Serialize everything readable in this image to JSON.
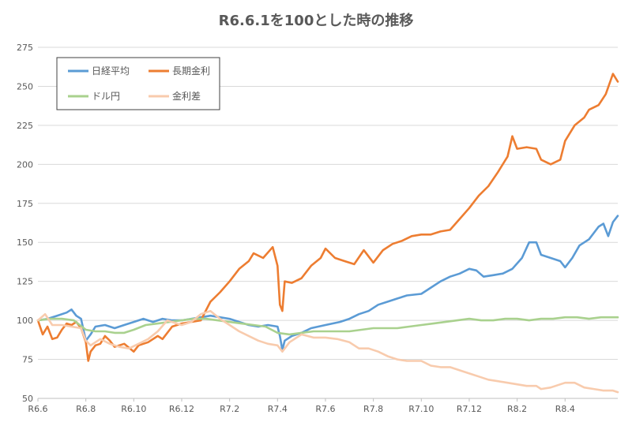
{
  "chart_data": {
    "type": "line",
    "title": "R6.6.1を100とした時の推移",
    "xlabel": "",
    "ylabel": "",
    "ylim": [
      50,
      275
    ],
    "yticks": [
      50,
      75,
      100,
      125,
      150,
      175,
      200,
      225,
      250,
      275
    ],
    "xlim": [
      0,
      24.2
    ],
    "xticks": [
      {
        "x": 0,
        "label": "R6.6"
      },
      {
        "x": 2,
        "label": "R6.8"
      },
      {
        "x": 4,
        "label": "R6.10"
      },
      {
        "x": 6,
        "label": "R6.12"
      },
      {
        "x": 8,
        "label": "R7.2"
      },
      {
        "x": 10,
        "label": "R7.4"
      },
      {
        "x": 12,
        "label": "R7.6"
      },
      {
        "x": 14,
        "label": "R7.8"
      },
      {
        "x": 16,
        "label": "R7.10"
      },
      {
        "x": 18,
        "label": "R7.12"
      },
      {
        "x": 20,
        "label": "R8.2"
      },
      {
        "x": 22,
        "label": "R8.4"
      }
    ],
    "grid": "horizontal",
    "legend_position": "top-left",
    "series": [
      {
        "name": "日経平均",
        "color": "#5B9BD5",
        "points": [
          [
            0,
            100
          ],
          [
            0.4,
            101
          ],
          [
            0.8,
            103
          ],
          [
            1.2,
            105
          ],
          [
            1.4,
            107
          ],
          [
            1.6,
            103
          ],
          [
            1.8,
            101
          ],
          [
            2.0,
            87
          ],
          [
            2.2,
            91
          ],
          [
            2.4,
            96
          ],
          [
            2.8,
            97
          ],
          [
            3.2,
            95
          ],
          [
            3.6,
            97
          ],
          [
            4.0,
            99
          ],
          [
            4.4,
            101
          ],
          [
            4.8,
            99
          ],
          [
            5.2,
            101
          ],
          [
            5.6,
            100
          ],
          [
            6.0,
            100
          ],
          [
            6.4,
            101
          ],
          [
            6.8,
            102
          ],
          [
            7.2,
            103
          ],
          [
            7.6,
            102
          ],
          [
            8.0,
            101
          ],
          [
            8.4,
            99
          ],
          [
            8.8,
            97
          ],
          [
            9.2,
            96
          ],
          [
            9.6,
            97
          ],
          [
            10.0,
            96
          ],
          [
            10.1,
            90
          ],
          [
            10.2,
            81
          ],
          [
            10.3,
            87
          ],
          [
            10.6,
            90
          ],
          [
            11.0,
            92
          ],
          [
            11.4,
            95
          ],
          [
            12.0,
            97
          ],
          [
            12.6,
            99
          ],
          [
            13.0,
            101
          ],
          [
            13.4,
            104
          ],
          [
            13.8,
            106
          ],
          [
            14.2,
            110
          ],
          [
            14.6,
            112
          ],
          [
            15.0,
            114
          ],
          [
            15.4,
            116
          ],
          [
            16.0,
            117
          ],
          [
            16.4,
            121
          ],
          [
            16.8,
            125
          ],
          [
            17.2,
            128
          ],
          [
            17.6,
            130
          ],
          [
            18.0,
            133
          ],
          [
            18.3,
            132
          ],
          [
            18.6,
            128
          ],
          [
            19.0,
            129
          ],
          [
            19.4,
            130
          ],
          [
            19.8,
            133
          ],
          [
            20.2,
            140
          ],
          [
            20.5,
            150
          ],
          [
            20.8,
            150
          ],
          [
            21.0,
            142
          ],
          [
            21.4,
            140
          ],
          [
            21.8,
            138
          ],
          [
            22.0,
            134
          ],
          [
            22.3,
            140
          ],
          [
            22.6,
            148
          ],
          [
            23.0,
            152
          ],
          [
            23.4,
            160
          ],
          [
            23.6,
            162
          ],
          [
            23.8,
            154
          ],
          [
            24.0,
            163
          ],
          [
            24.2,
            167
          ]
        ]
      },
      {
        "name": "長期金利",
        "color": "#ED7D31",
        "points": [
          [
            0,
            100
          ],
          [
            0.2,
            91
          ],
          [
            0.4,
            96
          ],
          [
            0.6,
            88
          ],
          [
            0.8,
            89
          ],
          [
            1.0,
            94
          ],
          [
            1.2,
            98
          ],
          [
            1.4,
            97
          ],
          [
            1.6,
            99
          ],
          [
            1.8,
            95
          ],
          [
            2.0,
            86
          ],
          [
            2.1,
            74
          ],
          [
            2.2,
            80
          ],
          [
            2.4,
            84
          ],
          [
            2.6,
            85
          ],
          [
            2.8,
            90
          ],
          [
            3.0,
            87
          ],
          [
            3.2,
            83
          ],
          [
            3.6,
            85
          ],
          [
            4.0,
            80
          ],
          [
            4.2,
            84
          ],
          [
            4.6,
            86
          ],
          [
            5.0,
            90
          ],
          [
            5.2,
            88
          ],
          [
            5.6,
            96
          ],
          [
            6.0,
            98
          ],
          [
            6.4,
            99
          ],
          [
            6.8,
            100
          ],
          [
            7.2,
            112
          ],
          [
            7.6,
            118
          ],
          [
            8.0,
            125
          ],
          [
            8.4,
            133
          ],
          [
            8.8,
            138
          ],
          [
            9.0,
            143
          ],
          [
            9.4,
            140
          ],
          [
            9.8,
            147
          ],
          [
            10.0,
            135
          ],
          [
            10.1,
            110
          ],
          [
            10.2,
            106
          ],
          [
            10.3,
            125
          ],
          [
            10.6,
            124
          ],
          [
            11.0,
            127
          ],
          [
            11.4,
            135
          ],
          [
            11.8,
            140
          ],
          [
            12.0,
            146
          ],
          [
            12.4,
            140
          ],
          [
            12.8,
            138
          ],
          [
            13.2,
            136
          ],
          [
            13.6,
            145
          ],
          [
            14.0,
            137
          ],
          [
            14.4,
            145
          ],
          [
            14.8,
            149
          ],
          [
            15.2,
            151
          ],
          [
            15.6,
            154
          ],
          [
            16.0,
            155
          ],
          [
            16.4,
            155
          ],
          [
            16.8,
            157
          ],
          [
            17.2,
            158
          ],
          [
            17.6,
            165
          ],
          [
            18.0,
            172
          ],
          [
            18.4,
            180
          ],
          [
            18.8,
            186
          ],
          [
            19.2,
            195
          ],
          [
            19.6,
            205
          ],
          [
            19.8,
            218
          ],
          [
            20.0,
            210
          ],
          [
            20.4,
            211
          ],
          [
            20.8,
            210
          ],
          [
            21.0,
            203
          ],
          [
            21.4,
            200
          ],
          [
            21.8,
            203
          ],
          [
            22.0,
            215
          ],
          [
            22.4,
            225
          ],
          [
            22.8,
            230
          ],
          [
            23.0,
            235
          ],
          [
            23.4,
            238
          ],
          [
            23.7,
            245
          ],
          [
            24.0,
            258
          ],
          [
            24.2,
            253
          ]
        ]
      },
      {
        "name": "ドル円",
        "color": "#A9D18E",
        "points": [
          [
            0,
            100
          ],
          [
            0.5,
            101
          ],
          [
            1.0,
            101
          ],
          [
            1.5,
            100
          ],
          [
            2.0,
            94
          ],
          [
            2.4,
            93
          ],
          [
            2.8,
            93
          ],
          [
            3.2,
            92
          ],
          [
            3.6,
            92
          ],
          [
            4.0,
            94
          ],
          [
            4.5,
            97
          ],
          [
            5.0,
            98
          ],
          [
            5.5,
            99
          ],
          [
            6.0,
            100
          ],
          [
            6.5,
            101
          ],
          [
            7.0,
            101
          ],
          [
            7.5,
            100
          ],
          [
            8.0,
            99
          ],
          [
            8.5,
            98
          ],
          [
            9.0,
            97
          ],
          [
            9.5,
            96
          ],
          [
            10.0,
            92
          ],
          [
            10.5,
            91
          ],
          [
            11.0,
            92
          ],
          [
            11.5,
            93
          ],
          [
            12.0,
            93
          ],
          [
            12.5,
            93
          ],
          [
            13.0,
            93
          ],
          [
            13.5,
            94
          ],
          [
            14.0,
            95
          ],
          [
            14.5,
            95
          ],
          [
            15.0,
            95
          ],
          [
            15.5,
            96
          ],
          [
            16.0,
            97
          ],
          [
            16.5,
            98
          ],
          [
            17.0,
            99
          ],
          [
            17.5,
            100
          ],
          [
            18.0,
            101
          ],
          [
            18.5,
            100
          ],
          [
            19.0,
            100
          ],
          [
            19.5,
            101
          ],
          [
            20.0,
            101
          ],
          [
            20.5,
            100
          ],
          [
            21.0,
            101
          ],
          [
            21.5,
            101
          ],
          [
            22.0,
            102
          ],
          [
            22.5,
            102
          ],
          [
            23.0,
            101
          ],
          [
            23.5,
            102
          ],
          [
            24.0,
            102
          ],
          [
            24.2,
            102
          ]
        ]
      },
      {
        "name": "金利差",
        "color": "#F8CBAD",
        "points": [
          [
            0,
            100
          ],
          [
            0.3,
            104
          ],
          [
            0.6,
            97
          ],
          [
            1.0,
            97
          ],
          [
            1.4,
            96
          ],
          [
            1.8,
            95
          ],
          [
            2.0,
            87
          ],
          [
            2.2,
            84
          ],
          [
            2.6,
            88
          ],
          [
            3.0,
            85
          ],
          [
            3.4,
            83
          ],
          [
            3.8,
            82
          ],
          [
            4.2,
            85
          ],
          [
            4.6,
            88
          ],
          [
            5.0,
            93
          ],
          [
            5.4,
            100
          ],
          [
            5.8,
            98
          ],
          [
            6.0,
            97
          ],
          [
            6.4,
            99
          ],
          [
            6.8,
            104
          ],
          [
            7.2,
            106
          ],
          [
            7.6,
            101
          ],
          [
            8.0,
            97
          ],
          [
            8.4,
            93
          ],
          [
            8.8,
            90
          ],
          [
            9.2,
            87
          ],
          [
            9.6,
            85
          ],
          [
            10.0,
            84
          ],
          [
            10.2,
            80
          ],
          [
            10.5,
            86
          ],
          [
            11.0,
            91
          ],
          [
            11.5,
            89
          ],
          [
            12.0,
            89
          ],
          [
            12.5,
            88
          ],
          [
            13.0,
            86
          ],
          [
            13.4,
            82
          ],
          [
            13.8,
            82
          ],
          [
            14.2,
            80
          ],
          [
            14.6,
            77
          ],
          [
            15.0,
            75
          ],
          [
            15.4,
            74
          ],
          [
            16.0,
            74
          ],
          [
            16.4,
            71
          ],
          [
            16.8,
            70
          ],
          [
            17.2,
            70
          ],
          [
            17.6,
            68
          ],
          [
            18.0,
            66
          ],
          [
            18.4,
            64
          ],
          [
            18.8,
            62
          ],
          [
            19.2,
            61
          ],
          [
            19.6,
            60
          ],
          [
            20.0,
            59
          ],
          [
            20.4,
            58
          ],
          [
            20.8,
            58
          ],
          [
            21.0,
            56
          ],
          [
            21.4,
            57
          ],
          [
            21.8,
            59
          ],
          [
            22.0,
            60
          ],
          [
            22.4,
            60
          ],
          [
            22.8,
            57
          ],
          [
            23.2,
            56
          ],
          [
            23.6,
            55
          ],
          [
            24.0,
            55
          ],
          [
            24.2,
            54
          ]
        ]
      }
    ]
  }
}
